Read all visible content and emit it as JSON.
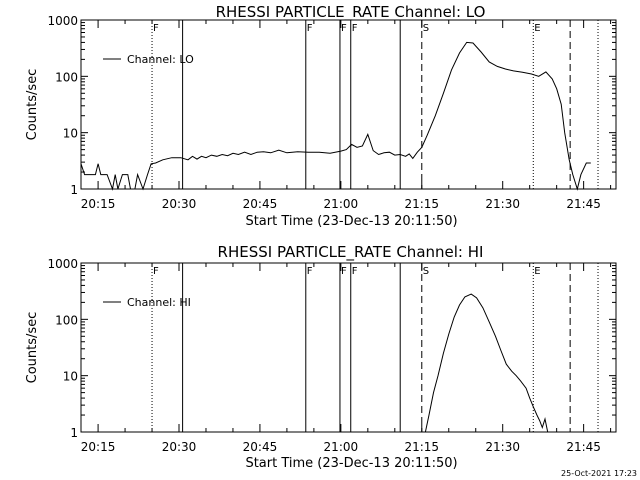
{
  "chart_data": [
    {
      "type": "line",
      "title": "RHESSI PARTICLE_RATE Channel: LO",
      "xlabel": "Start Time (23-Dec-13 20:11:50)",
      "ylabel": "Counts/sec",
      "y_scale": "log",
      "ylim": [
        1,
        1000
      ],
      "xlim": [
        "20:11:50",
        "21:51:00"
      ],
      "x_ticks": [
        "20:15",
        "20:30",
        "20:45",
        "21:00",
        "21:15",
        "21:30",
        "21:45"
      ],
      "y_ticks": [
        "1",
        "10",
        "100",
        "1000"
      ],
      "legend": {
        "position": "top-left",
        "entries": [
          "Channel: LO"
        ]
      },
      "markers": [
        {
          "label": "F",
          "time": "20:25:00",
          "style": "dotted"
        },
        {
          "label": "",
          "time": "20:30:40",
          "style": "solid"
        },
        {
          "label": "F",
          "time": "20:53:30",
          "style": "solid"
        },
        {
          "label": "F",
          "time": "20:59:50",
          "style": "solid"
        },
        {
          "label": "F",
          "time": "21:01:50",
          "style": "solid"
        },
        {
          "label": "",
          "time": "21:11:00",
          "style": "solid"
        },
        {
          "label": "S",
          "time": "21:15:00",
          "style": "dashed"
        },
        {
          "label": "E",
          "time": "21:35:40",
          "style": "dotted"
        },
        {
          "label": "",
          "time": "21:42:30",
          "style": "dashed"
        },
        {
          "label": "",
          "time": "21:47:40",
          "style": "dotted"
        }
      ],
      "series": [
        {
          "name": "Channel: LO",
          "points": [
            [
              "20:11:50",
              2.8
            ],
            [
              "20:12:30",
              1.8
            ],
            [
              "20:13:30",
              1.8
            ],
            [
              "20:14:30",
              1.8
            ],
            [
              "20:15:00",
              2.8
            ],
            [
              "20:15:30",
              1.8
            ],
            [
              "20:16:40",
              1.8
            ],
            [
              "20:17:40",
              1.0
            ],
            [
              "20:18:10",
              1.8
            ],
            [
              "20:18:40",
              1.0
            ],
            [
              "20:19:30",
              1.8
            ],
            [
              "20:20:30",
              1.8
            ],
            [
              "20:21:00",
              1.0
            ],
            [
              "20:21:50",
              1.0
            ],
            [
              "20:22:20",
              1.8
            ],
            [
              "20:23:20",
              1.0
            ],
            [
              "20:24:10",
              1.8
            ],
            [
              "20:24:50",
              2.8
            ],
            [
              "20:25:40",
              2.9
            ],
            [
              "20:27:00",
              3.3
            ],
            [
              "20:28:40",
              3.6
            ],
            [
              "20:30:20",
              3.6
            ],
            [
              "20:31:40",
              3.3
            ],
            [
              "20:32:30",
              3.8
            ],
            [
              "20:33:20",
              3.4
            ],
            [
              "20:34:10",
              3.8
            ],
            [
              "20:35:00",
              3.6
            ],
            [
              "20:36:00",
              4.0
            ],
            [
              "20:37:00",
              3.8
            ],
            [
              "20:38:00",
              4.1
            ],
            [
              "20:39:00",
              3.9
            ],
            [
              "20:40:00",
              4.3
            ],
            [
              "20:41:00",
              4.1
            ],
            [
              "20:42:10",
              4.5
            ],
            [
              "20:43:20",
              4.1
            ],
            [
              "20:44:30",
              4.5
            ],
            [
              "20:45:40",
              4.6
            ],
            [
              "20:47:00",
              4.4
            ],
            [
              "20:48:30",
              4.9
            ],
            [
              "20:50:00",
              4.4
            ],
            [
              "20:52:00",
              4.6
            ],
            [
              "20:54:00",
              4.5
            ],
            [
              "20:56:00",
              4.5
            ],
            [
              "20:58:00",
              4.3
            ],
            [
              "21:00:00",
              4.7
            ],
            [
              "21:01:00",
              5.0
            ],
            [
              "21:02:00",
              6.2
            ],
            [
              "21:03:00",
              5.5
            ],
            [
              "21:04:00",
              5.8
            ],
            [
              "21:05:00",
              9.3
            ],
            [
              "21:06:00",
              4.8
            ],
            [
              "21:07:00",
              4.1
            ],
            [
              "21:08:00",
              4.4
            ],
            [
              "21:09:00",
              4.5
            ],
            [
              "21:10:00",
              4.0
            ],
            [
              "21:11:00",
              4.1
            ],
            [
              "21:12:00",
              3.8
            ],
            [
              "21:12:40",
              4.2
            ],
            [
              "21:13:20",
              3.5
            ],
            [
              "21:14:10",
              4.5
            ],
            [
              "21:15:00",
              5.5
            ],
            [
              "21:16:00",
              9.0
            ],
            [
              "21:17:30",
              20
            ],
            [
              "21:19:00",
              50
            ],
            [
              "21:20:30",
              130
            ],
            [
              "21:22:00",
              260
            ],
            [
              "21:23:20",
              400
            ],
            [
              "21:24:30",
              390
            ],
            [
              "21:26:00",
              270
            ],
            [
              "21:27:30",
              180
            ],
            [
              "21:29:00",
              150
            ],
            [
              "21:30:30",
              135
            ],
            [
              "21:32:00",
              125
            ],
            [
              "21:33:40",
              118
            ],
            [
              "21:35:20",
              110
            ],
            [
              "21:36:40",
              100
            ],
            [
              "21:38:00",
              120
            ],
            [
              "21:39:10",
              90
            ],
            [
              "21:40:00",
              60
            ],
            [
              "21:40:50",
              32
            ],
            [
              "21:41:30",
              10
            ],
            [
              "21:42:20",
              3.3
            ],
            [
              "21:43:00",
              1.8
            ],
            [
              "21:43:50",
              1.0
            ],
            [
              "21:44:30",
              1.8
            ],
            [
              "21:45:30",
              2.9
            ],
            [
              "21:46:20",
              2.9
            ]
          ]
        }
      ]
    },
    {
      "type": "line",
      "title": "RHESSI PARTICLE_RATE Channel: HI",
      "xlabel": "Start Time (23-Dec-13 20:11:50)",
      "ylabel": "Counts/sec",
      "y_scale": "log",
      "ylim": [
        1,
        1000
      ],
      "xlim": [
        "20:11:50",
        "21:51:00"
      ],
      "x_ticks": [
        "20:15",
        "20:30",
        "20:45",
        "21:00",
        "21:15",
        "21:30",
        "21:45"
      ],
      "y_ticks": [
        "1",
        "10",
        "100",
        "1000"
      ],
      "legend": {
        "position": "top-left",
        "entries": [
          "Channel: HI"
        ]
      },
      "markers": [
        {
          "label": "F",
          "time": "20:25:00",
          "style": "dotted"
        },
        {
          "label": "",
          "time": "20:30:40",
          "style": "solid"
        },
        {
          "label": "F",
          "time": "20:53:30",
          "style": "solid"
        },
        {
          "label": "F",
          "time": "20:59:50",
          "style": "solid"
        },
        {
          "label": "F",
          "time": "21:01:50",
          "style": "solid"
        },
        {
          "label": "",
          "time": "21:11:00",
          "style": "solid"
        },
        {
          "label": "S",
          "time": "21:15:00",
          "style": "dashed"
        },
        {
          "label": "E",
          "time": "21:35:40",
          "style": "dotted"
        },
        {
          "label": "",
          "time": "21:42:30",
          "style": "dashed"
        },
        {
          "label": "",
          "time": "21:47:40",
          "style": "dotted"
        }
      ],
      "series": [
        {
          "name": "Channel: HI",
          "points": [
            [
              "21:15:40",
              1.0
            ],
            [
              "21:16:20",
              2.0
            ],
            [
              "21:17:10",
              5.0
            ],
            [
              "21:18:00",
              10
            ],
            [
              "21:19:00",
              25
            ],
            [
              "21:20:00",
              55
            ],
            [
              "21:21:00",
              110
            ],
            [
              "21:22:00",
              180
            ],
            [
              "21:23:00",
              250
            ],
            [
              "21:24:10",
              280
            ],
            [
              "21:25:10",
              240
            ],
            [
              "21:26:20",
              160
            ],
            [
              "21:27:30",
              90
            ],
            [
              "21:28:40",
              50
            ],
            [
              "21:29:40",
              28
            ],
            [
              "21:30:40",
              16
            ],
            [
              "21:31:40",
              12
            ],
            [
              "21:32:30",
              10
            ],
            [
              "21:33:20",
              8.0
            ],
            [
              "21:34:20",
              6.0
            ],
            [
              "21:35:00",
              4.0
            ],
            [
              "21:35:40",
              2.8
            ],
            [
              "21:36:20",
              2.0
            ],
            [
              "21:36:50",
              1.6
            ],
            [
              "21:37:20",
              1.2
            ],
            [
              "21:37:50",
              1.7
            ],
            [
              "21:38:20",
              1.0
            ]
          ]
        }
      ]
    }
  ],
  "footer": {
    "timestamp": "25-Oct-2021 17:23"
  }
}
